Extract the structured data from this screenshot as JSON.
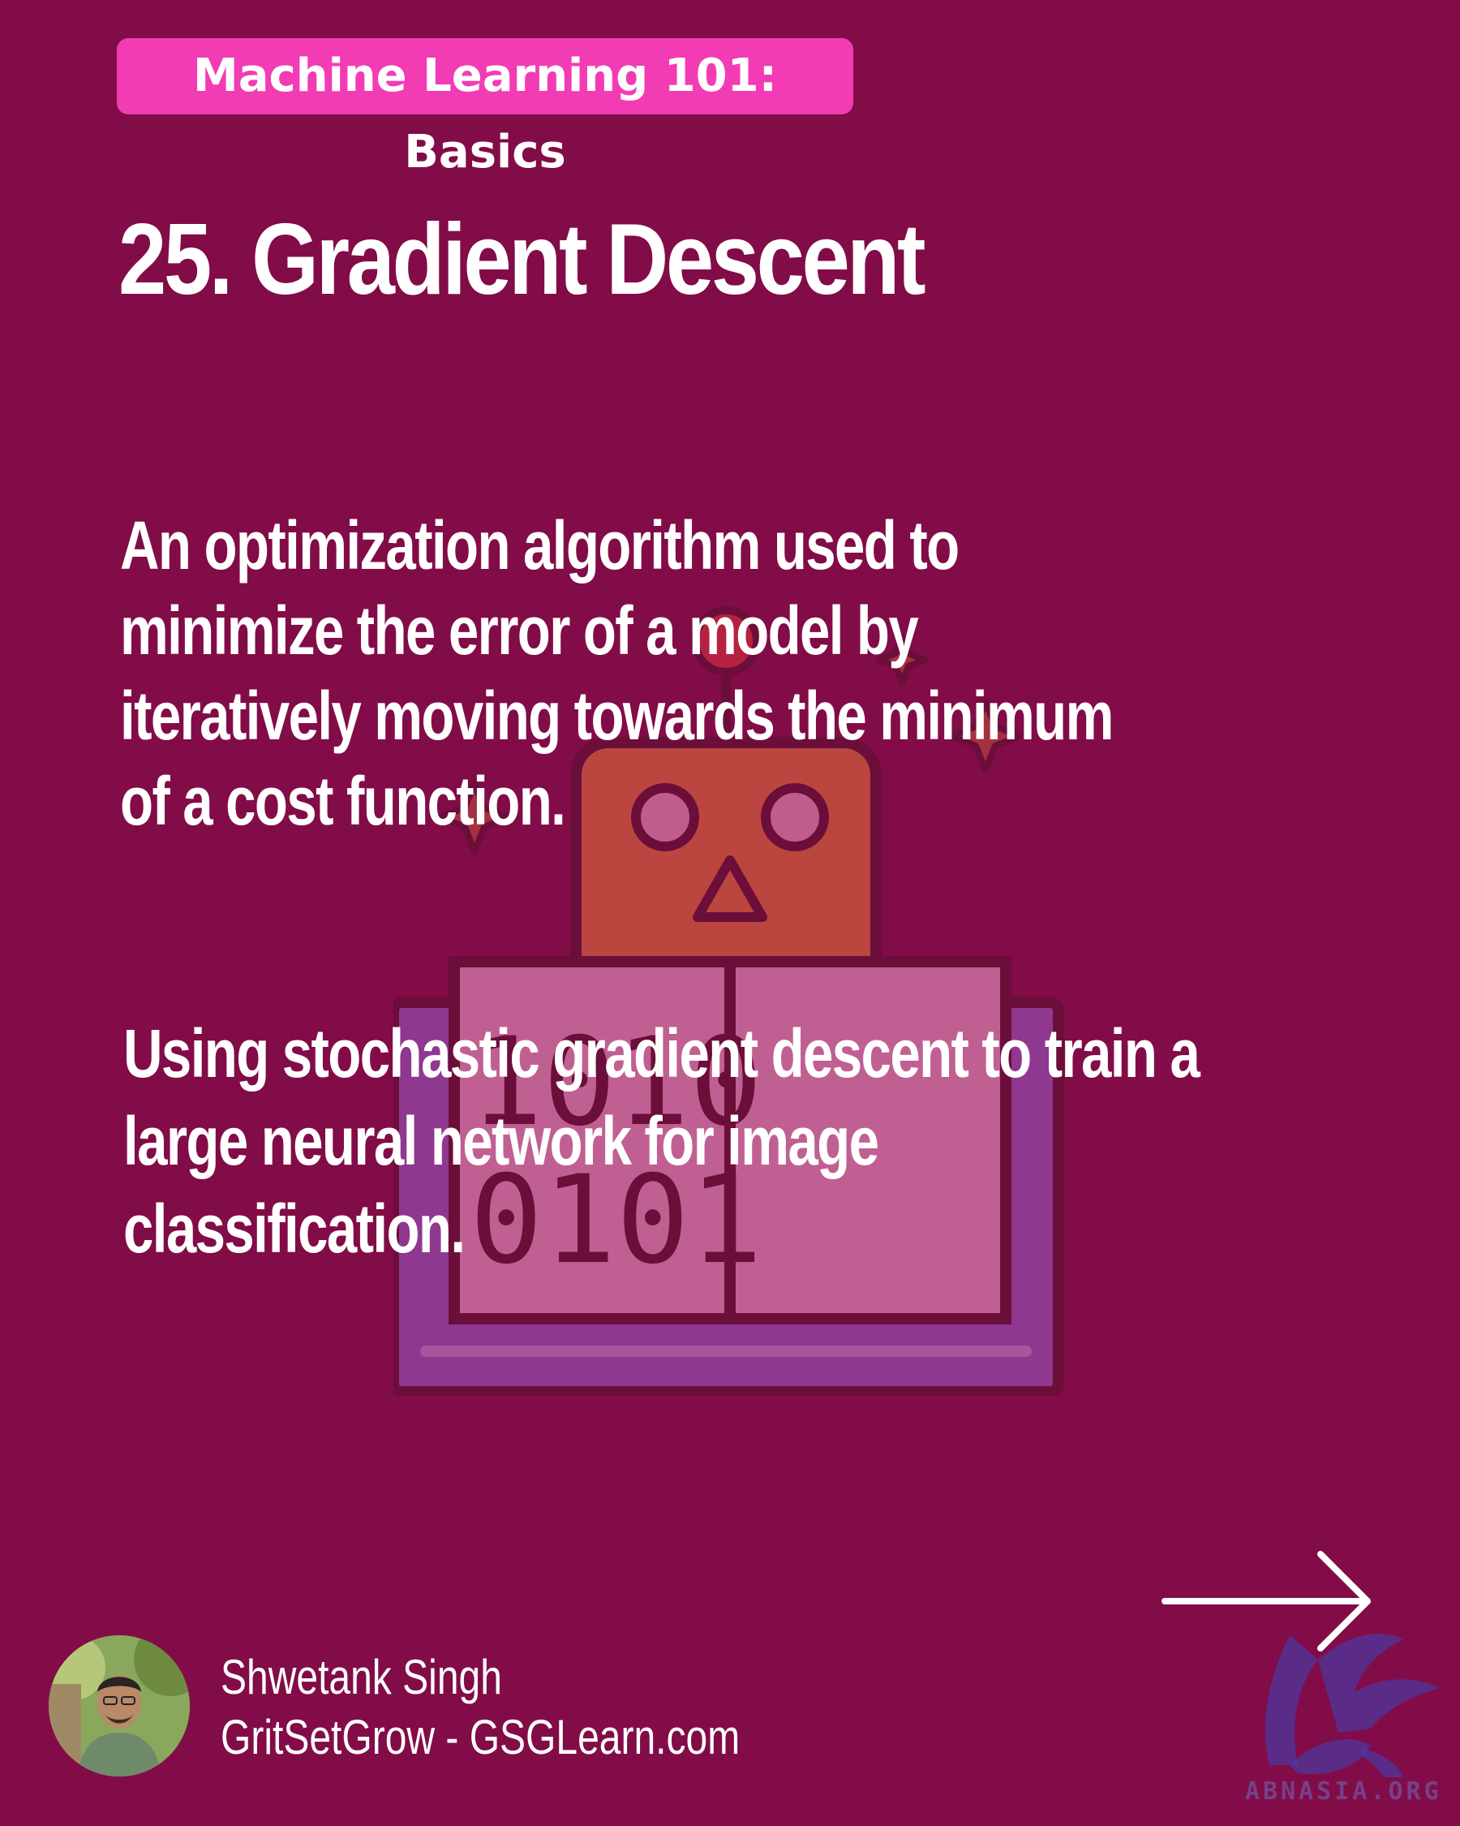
{
  "header": {
    "series_label": "Machine Learning 101: Basics",
    "title": "25. Gradient Descent"
  },
  "content": {
    "definition_lines": [
      "An optimization algorithm used to",
      "minimize the error of a model by",
      "iteratively moving towards the minimum",
      "of a cost function."
    ],
    "example_lines": [
      "Using stochastic gradient descent to train a",
      "large neural network for image",
      "classification."
    ]
  },
  "illustration": {
    "binary_rows": [
      "1010",
      "0101"
    ],
    "icon": "robot-with-binary-book-icon"
  },
  "footer": {
    "author_name": "Shwetank Singh",
    "author_site": "GritSetGrow - GSGLearn.com",
    "next_icon": "right-arrow-icon",
    "watermark_text": "ABNASIA.ORG"
  },
  "colors": {
    "background": "#820c47",
    "badge": "#f23cb3",
    "text": "#ffffff"
  }
}
